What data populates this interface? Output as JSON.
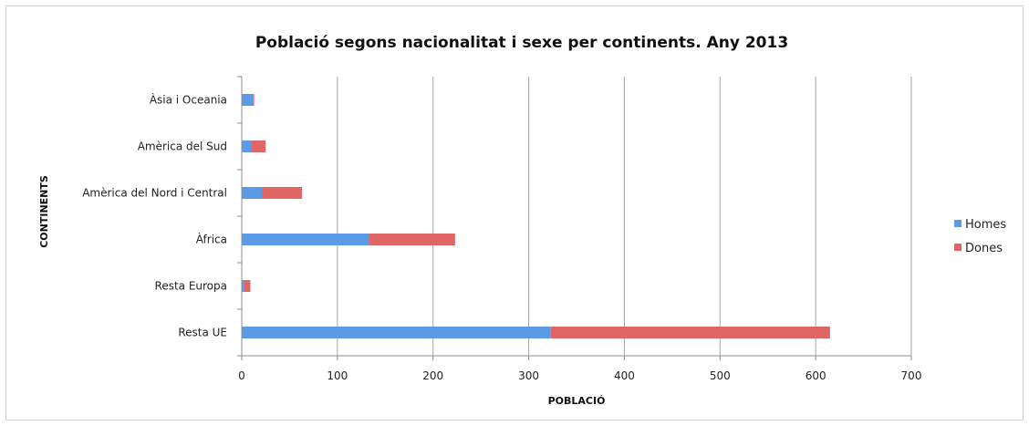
{
  "chart_data": {
    "type": "bar",
    "orientation": "horizontal",
    "stacked": true,
    "title": "Població segons nacionalitat i sexe per continents. Any 2013",
    "xlabel": "POBLACIÓ",
    "ylabel": "CONTINENTS",
    "xlim": [
      0,
      700
    ],
    "xticks": [
      "0",
      "100",
      "200",
      "300",
      "400",
      "500",
      "600",
      "700"
    ],
    "grid": "vertical",
    "legend_position": "right",
    "categories": [
      "Resta UE",
      "Resta Europa",
      "Àfrica",
      "Amèrica del Nord i Central",
      "Amèrica del Sud",
      "Àsia i Oceania"
    ],
    "series": [
      {
        "name": "Homes",
        "color": "#5b9be6",
        "values": [
          323,
          2,
          133,
          21,
          10,
          12
        ]
      },
      {
        "name": "Dones",
        "color": "#e06666",
        "values": [
          292,
          7,
          90,
          42,
          15,
          1
        ]
      }
    ]
  }
}
